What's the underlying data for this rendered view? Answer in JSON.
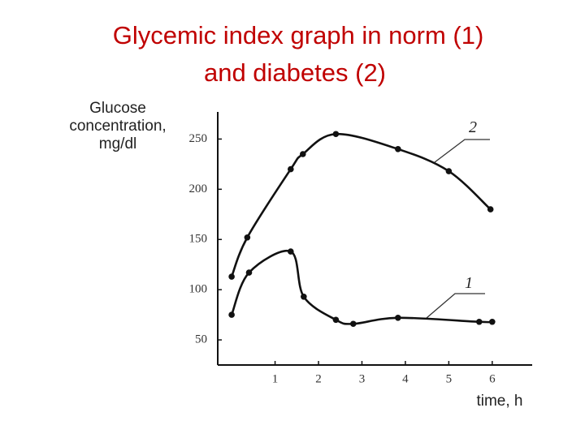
{
  "chart_data": {
    "type": "line",
    "title": [
      "Glycemic index graph in norm (1)",
      "and diabetes (2)"
    ],
    "ylabel": [
      "Glucose",
      "concentration,",
      "mg/dl"
    ],
    "xlabel": "time, h",
    "xlim": [
      -0.32,
      6.92
    ],
    "ylim": [
      25,
      277
    ],
    "xticks": [
      1,
      2,
      3,
      4,
      5,
      6
    ],
    "yticks": [
      50,
      100,
      150,
      200,
      250
    ],
    "series": [
      {
        "name": "2",
        "color": "#111111",
        "x": [
          0,
          0.36,
          1.36,
          1.64,
          2.4,
          3.83,
          5,
          5.96
        ],
        "values": [
          113,
          152,
          220,
          235,
          255,
          240,
          218,
          180
        ]
      },
      {
        "name": "1",
        "color": "#111111",
        "x": [
          0,
          0.4,
          1.36,
          1.66,
          2.4,
          2.8,
          3.83,
          5.7,
          6
        ],
        "values": [
          75,
          117,
          138,
          93,
          70,
          66,
          72,
          68,
          68
        ]
      }
    ]
  }
}
